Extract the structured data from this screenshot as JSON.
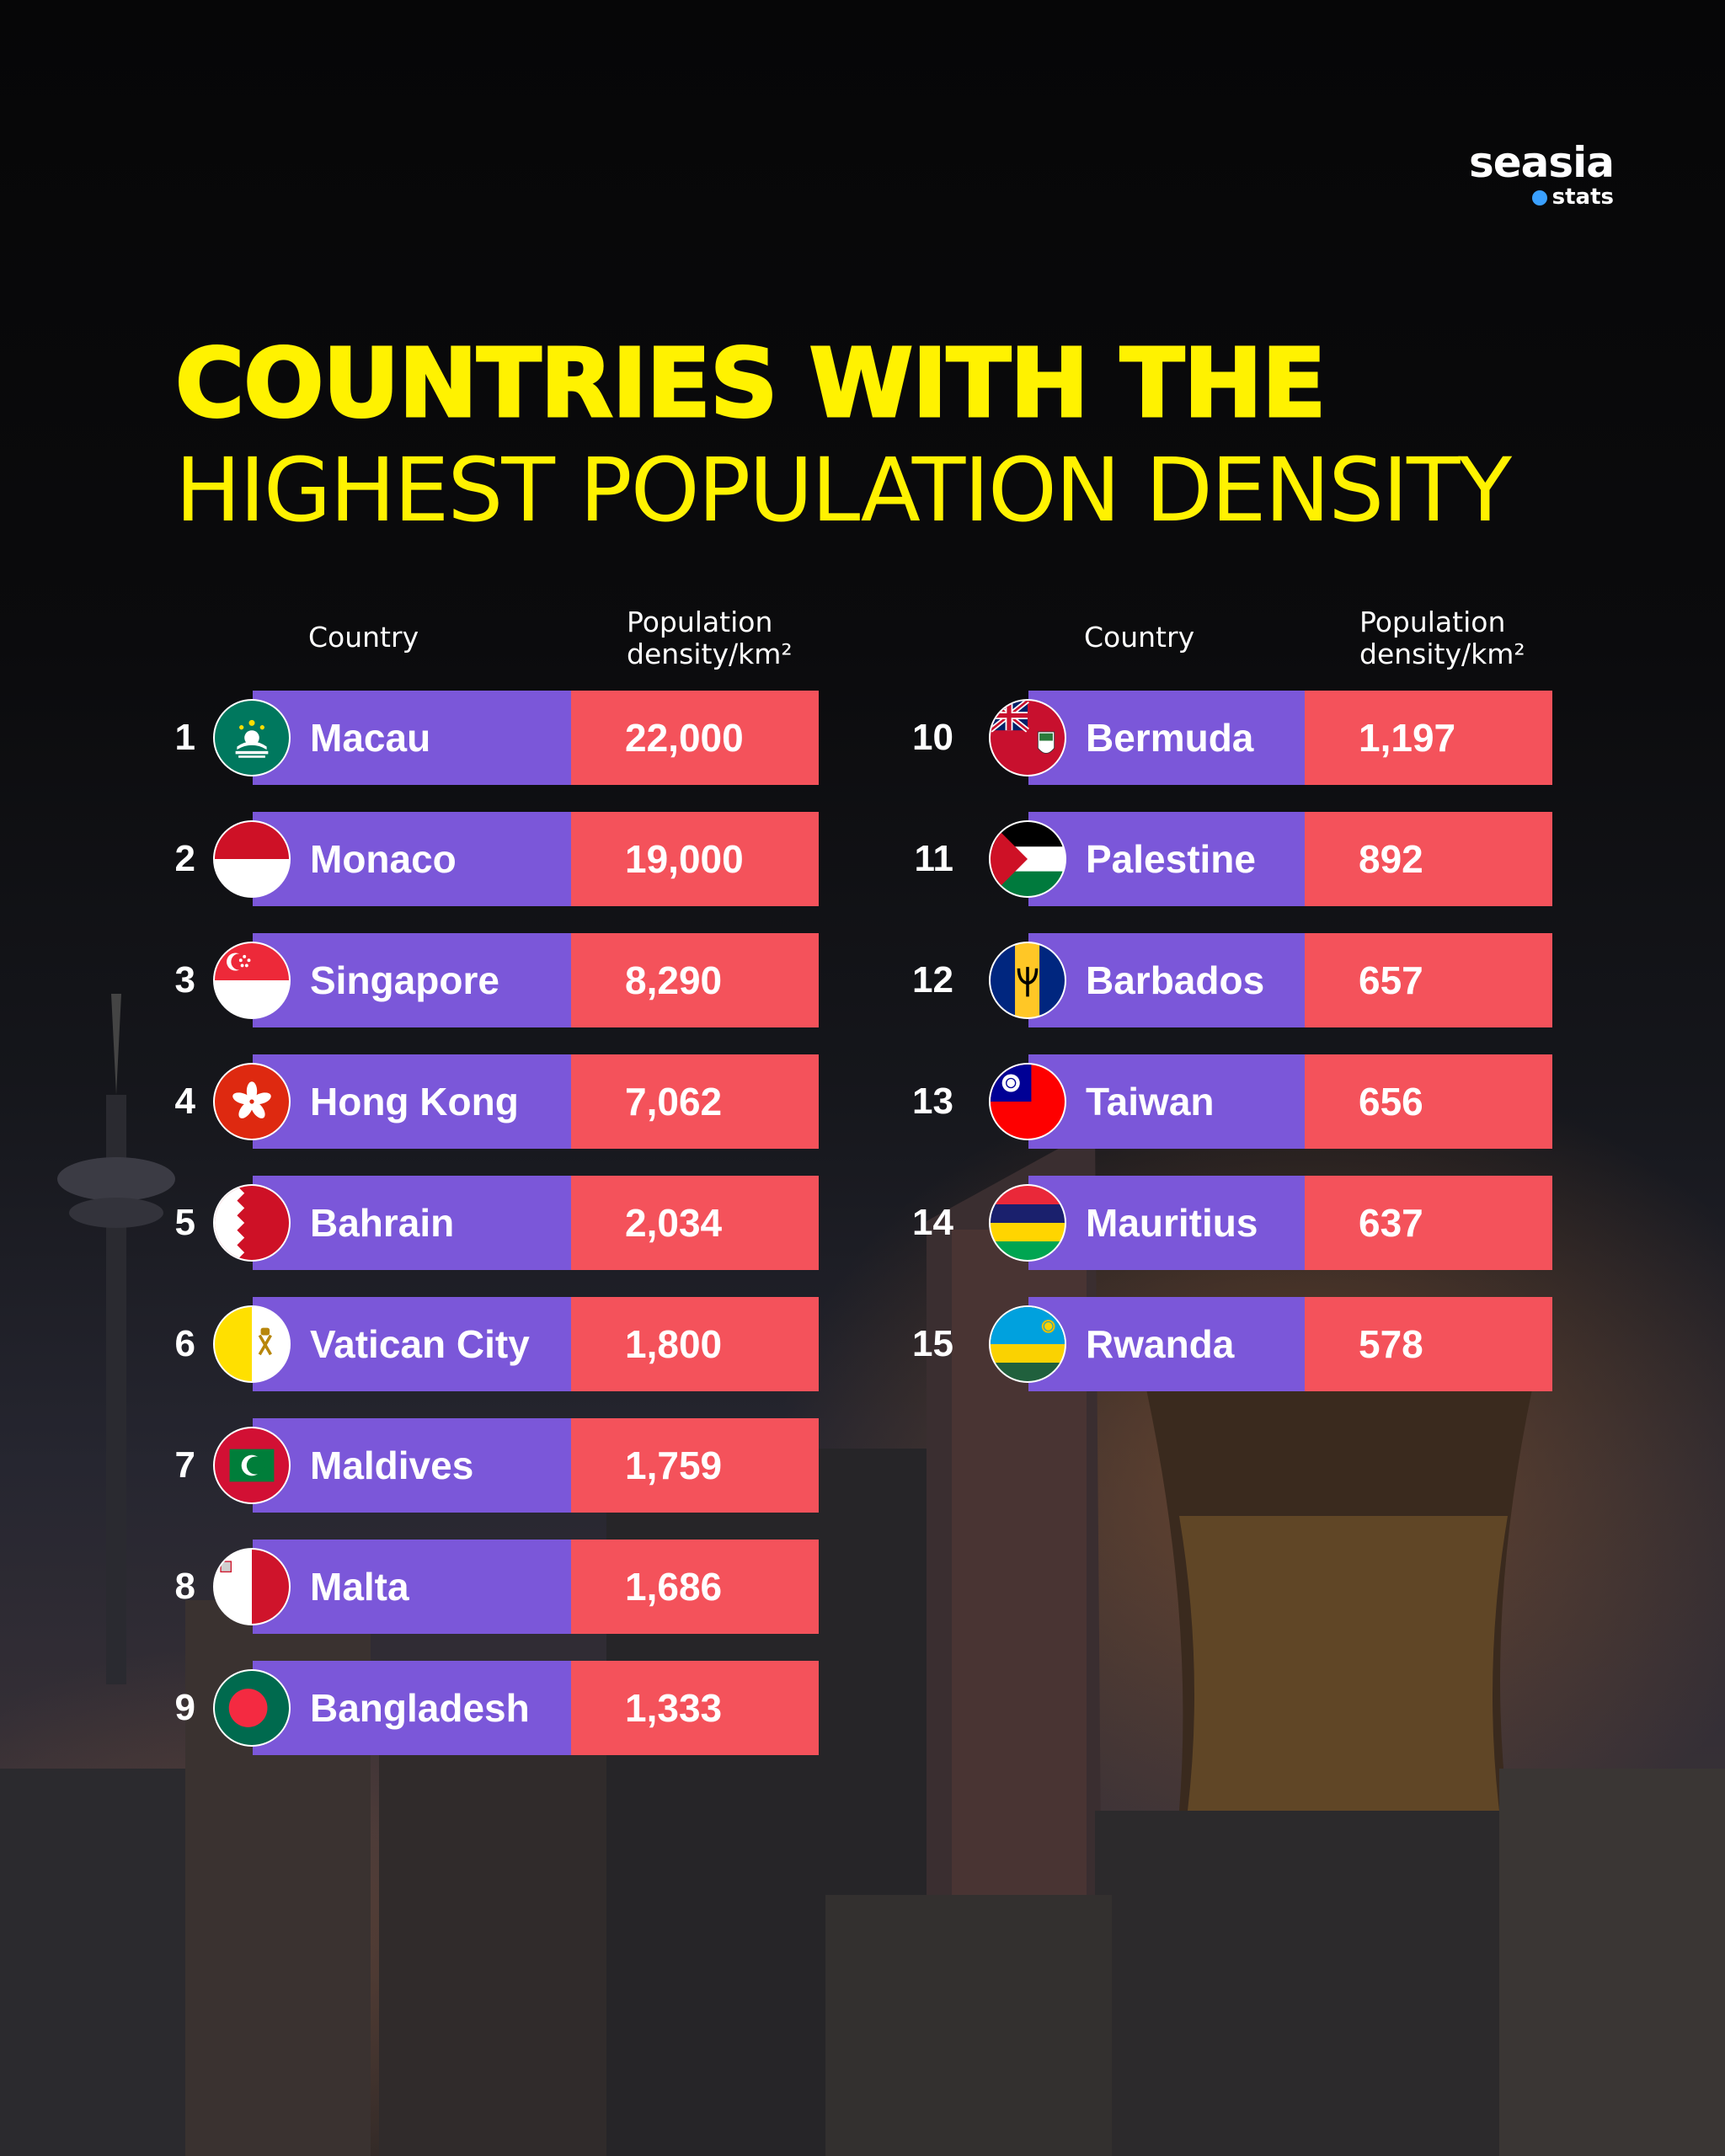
{
  "brand": {
    "name": "seasia",
    "sub": "stats"
  },
  "title_line1": "COUNTRIES WITH THE",
  "title_line2": "HIGHEST POPULATION DENSITY",
  "headers": {
    "country": "Country",
    "density_line1": "Population",
    "density_line2": "density/km²"
  },
  "rows": [
    {
      "rank": "1",
      "country": "Macau",
      "value": "22,000",
      "flag": "macau-flag-icon"
    },
    {
      "rank": "2",
      "country": "Monaco",
      "value": "19,000",
      "flag": "monaco-flag-icon"
    },
    {
      "rank": "3",
      "country": "Singapore",
      "value": "8,290",
      "flag": "singapore-flag-icon"
    },
    {
      "rank": "4",
      "country": "Hong Kong",
      "value": "7,062",
      "flag": "hong-kong-flag-icon"
    },
    {
      "rank": "5",
      "country": "Bahrain",
      "value": "2,034",
      "flag": "bahrain-flag-icon"
    },
    {
      "rank": "6",
      "country": "Vatican City",
      "value": "1,800",
      "flag": "vatican-flag-icon"
    },
    {
      "rank": "7",
      "country": "Maldives",
      "value": "1,759",
      "flag": "maldives-flag-icon"
    },
    {
      "rank": "8",
      "country": "Malta",
      "value": "1,686",
      "flag": "malta-flag-icon"
    },
    {
      "rank": "9",
      "country": "Bangladesh",
      "value": "1,333",
      "flag": "bangladesh-flag-icon"
    },
    {
      "rank": "10",
      "country": "Bermuda",
      "value": "1,197",
      "flag": "bermuda-flag-icon"
    },
    {
      "rank": "11",
      "country": "Palestine",
      "value": "892",
      "flag": "palestine-flag-icon"
    },
    {
      "rank": "12",
      "country": "Barbados",
      "value": "657",
      "flag": "barbados-flag-icon"
    },
    {
      "rank": "13",
      "country": "Taiwan",
      "value": "656",
      "flag": "taiwan-flag-icon"
    },
    {
      "rank": "14",
      "country": "Mauritius",
      "value": "637",
      "flag": "mauritius-flag-icon"
    },
    {
      "rank": "15",
      "country": "Rwanda",
      "value": "578",
      "flag": "rwanda-flag-icon"
    }
  ],
  "colors": {
    "title": "#fff200",
    "name_cell": "#7b57d9",
    "value_cell": "#f4525b"
  },
  "chart_data": {
    "type": "table",
    "columns": [
      "Country",
      "Population density/km²"
    ],
    "categories": [
      "Macau",
      "Monaco",
      "Singapore",
      "Hong Kong",
      "Bahrain",
      "Vatican City",
      "Maldives",
      "Malta",
      "Bangladesh",
      "Bermuda",
      "Palestine",
      "Barbados",
      "Taiwan",
      "Mauritius",
      "Rwanda"
    ],
    "values": [
      22000,
      19000,
      8290,
      7062,
      2034,
      1800,
      1759,
      1686,
      1333,
      1197,
      892,
      657,
      656,
      637,
      578
    ],
    "title": "COUNTRIES WITH THE HIGHEST POPULATION DENSITY"
  }
}
